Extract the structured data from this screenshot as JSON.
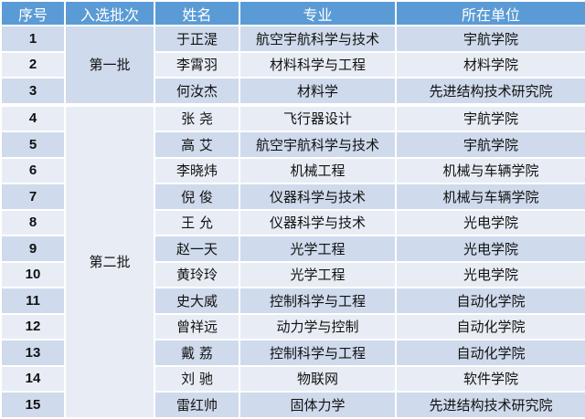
{
  "header": {
    "index": "序号",
    "batch": "入选批次",
    "name": "姓名",
    "major": "专业",
    "unit": "所在单位"
  },
  "batches": [
    "第一批",
    "第二批"
  ],
  "colors": {
    "header": "#5B9BD5",
    "row_dark": "#CFDAEC",
    "row_light": "#E8EDF5"
  },
  "rows": [
    {
      "index": "1",
      "name": "于正湜",
      "major": "航空宇航科学与技术",
      "unit": "宇航学院"
    },
    {
      "index": "2",
      "name": "李霄羽",
      "major": "材料科学与工程",
      "unit": "材料学院"
    },
    {
      "index": "3",
      "name": "何汝杰",
      "major": "材料学",
      "unit": "先进结构技术研究院"
    },
    {
      "index": "4",
      "name": "张 尧",
      "major": "飞行器设计",
      "unit": "宇航学院"
    },
    {
      "index": "5",
      "name": "高 艾",
      "major": "航空宇航科学与技术",
      "unit": "宇航学院"
    },
    {
      "index": "6",
      "name": "李晓炜",
      "major": "机械工程",
      "unit": "机械与车辆学院"
    },
    {
      "index": "7",
      "name": "倪 俊",
      "major": "仪器科学与技术",
      "unit": "机械与车辆学院"
    },
    {
      "index": "8",
      "name": "王 允",
      "major": "仪器科学与技术",
      "unit": "光电学院"
    },
    {
      "index": "9",
      "name": "赵一天",
      "major": "光学工程",
      "unit": "光电学院"
    },
    {
      "index": "10",
      "name": "黄玲玲",
      "major": "光学工程",
      "unit": "光电学院"
    },
    {
      "index": "11",
      "name": "史大威",
      "major": "控制科学与工程",
      "unit": "自动化学院"
    },
    {
      "index": "12",
      "name": "曾祥远",
      "major": "动力学与控制",
      "unit": "自动化学院"
    },
    {
      "index": "13",
      "name": "戴 荔",
      "major": "控制科学与工程",
      "unit": "自动化学院"
    },
    {
      "index": "14",
      "name": "刘 驰",
      "major": "物联网",
      "unit": "软件学院"
    },
    {
      "index": "15",
      "name": "雷红帅",
      "major": "固体力学",
      "unit": "先进结构技术研究院"
    }
  ]
}
